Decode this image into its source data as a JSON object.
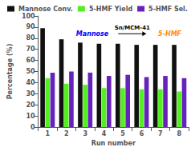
{
  "chart_data": {
    "type": "bar",
    "categories": [
      "1",
      "2",
      "3",
      "4",
      "5",
      "6",
      "7",
      "8"
    ],
    "series": [
      {
        "name": "Mannose Conv.",
        "color": "#111111",
        "values": [
          89,
          79,
          76,
          75,
          75,
          74,
          74,
          74
        ]
      },
      {
        "name": "5-HMF Yield",
        "color": "#55ee22",
        "values": [
          44,
          39,
          38,
          35,
          35,
          34,
          34,
          32
        ]
      },
      {
        "name": "5-HMF Sel.",
        "color": "#6622bb",
        "values": [
          49,
          50,
          49,
          46,
          47,
          45,
          46,
          44
        ]
      }
    ],
    "xlabel": "Run number",
    "ylabel": "Percentage (%)",
    "ylim": [
      0,
      100
    ],
    "yticks": [
      0,
      10,
      20,
      30,
      40,
      50,
      60,
      70,
      80,
      90,
      100
    ],
    "legend": "upper left",
    "grid": false,
    "annotations": [
      "Mannose",
      "5-HMF",
      "Sn/MCM-41"
    ]
  }
}
